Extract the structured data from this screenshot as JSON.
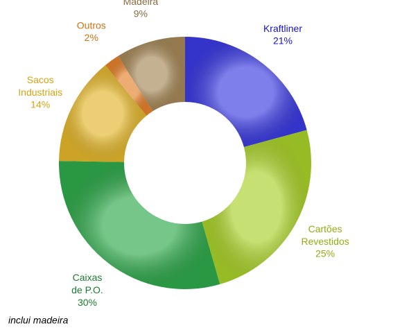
{
  "chart_data": {
    "type": "donut",
    "categories": [
      "Kraftliner",
      "Cartões Revestidos",
      "Caixas de P.O.",
      "Sacos Industriais",
      "Outros",
      "Madeira"
    ],
    "values": [
      21,
      25,
      30,
      14,
      2,
      9
    ],
    "value_labels": [
      "21%",
      "25%",
      "30%",
      "14%",
      "2%",
      "9%"
    ],
    "colors": [
      "#3a3ae0",
      "#a8d028",
      "#2ea84a",
      "#e2b52a",
      "#e4802a",
      "#a58757"
    ],
    "label_colors": [
      "#1414c8",
      "#8fae10",
      "#1a7a30",
      "#d4a414",
      "#d07010",
      "#8a6a40"
    ],
    "footnote": "inclui madeira"
  }
}
